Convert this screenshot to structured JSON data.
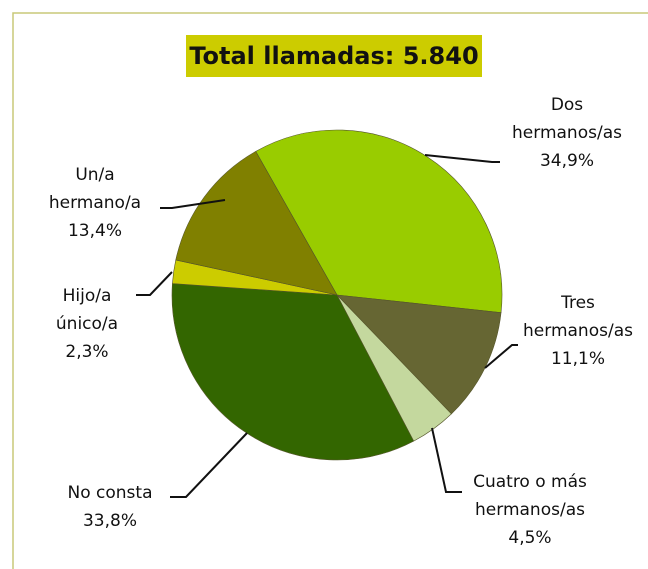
{
  "chart_data": {
    "type": "pie",
    "title": "Total llamadas: 5.840",
    "categories": [
      "Dos hermanos/as",
      "Tres hermanos/as",
      "Cuatro o más hermanos/as",
      "No consta",
      "Hijo/a único/a",
      "Un/a hermano/a"
    ],
    "values": [
      34.9,
      11.1,
      4.5,
      33.8,
      2.3,
      13.4
    ],
    "value_labels": [
      "34,9%",
      "11,1%",
      "4,5%",
      "33,8%",
      "2,3%",
      "13,4%"
    ],
    "colors": [
      "#99cc00",
      "#666633",
      "#c4d89e",
      "#336600",
      "#cccc00",
      "#808000"
    ]
  }
}
